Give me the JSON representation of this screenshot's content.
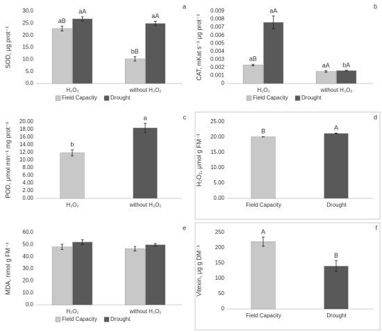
{
  "chart_data": [
    {
      "type": "bar",
      "panel": "a",
      "ylabel": "SOD, μg prot⁻¹",
      "categories": [
        "H₂O₂",
        "without H₂O₂"
      ],
      "series": [
        {
          "name": "Field Capacity",
          "color": "#c8c8c8",
          "values": [
            22.8,
            10.2
          ],
          "errors": [
            1.0,
            0.9
          ],
          "annotations": [
            "aB",
            "bB"
          ]
        },
        {
          "name": "Drought",
          "color": "#595959",
          "values": [
            26.8,
            24.9
          ],
          "errors": [
            0.9,
            0.9
          ],
          "annotations": [
            "aA",
            "aA"
          ]
        }
      ],
      "ylim": [
        0,
        30
      ],
      "yticks": [
        {
          "value": 0,
          "label": "0.0"
        },
        {
          "value": 5,
          "label": "5.0"
        },
        {
          "value": 10,
          "label": "10.0"
        },
        {
          "value": 15,
          "label": "15.0"
        },
        {
          "value": 20,
          "label": "20.0"
        },
        {
          "value": 25,
          "label": "25.0"
        },
        {
          "value": 30,
          "label": "30.0"
        }
      ],
      "legend": "bottom",
      "frame": false
    },
    {
      "type": "bar",
      "panel": "b",
      "ylabel": "CAT, mKat s⁻¹ μg prot⁻¹",
      "categories": [
        "H₂O₂",
        "without H₂O₂"
      ],
      "series": [
        {
          "name": "Field Capacity",
          "color": "#c8c8c8",
          "values": [
            0.0023,
            0.0015
          ],
          "errors": [
            0.0001,
            0.0001
          ],
          "annotations": [
            "aB",
            "aA"
          ]
        },
        {
          "name": "Drought",
          "color": "#595959",
          "values": [
            0.0076,
            0.0016
          ],
          "errors": [
            0.0008,
            5e-05
          ],
          "annotations": [
            "aA",
            "bA"
          ]
        }
      ],
      "ylim": [
        0,
        0.009
      ],
      "yticks": [
        0,
        0.001,
        0.002,
        0.003,
        0.004,
        0.005,
        0.006,
        0.007,
        0.008,
        0.009
      ],
      "legend": "bottom",
      "frame": false
    },
    {
      "type": "bar",
      "panel": "c",
      "ylabel": "POD, μmol min⁻¹ mg prot⁻¹",
      "categories": [
        "H₂O₂",
        "without H₂O₂"
      ],
      "values": [
        11.9,
        18.4
      ],
      "errors": [
        0.8,
        1.2
      ],
      "annotations": [
        "b",
        "a"
      ],
      "colors": [
        "#c8c8c8",
        "#595959"
      ],
      "ylim": [
        0,
        20
      ],
      "yticks": [
        {
          "value": 0,
          "label": "0.00"
        },
        {
          "value": 2,
          "label": "2.00"
        },
        {
          "value": 4,
          "label": "4.00"
        },
        {
          "value": 6,
          "label": "6.00"
        },
        {
          "value": 8,
          "label": "8.00"
        },
        {
          "value": 10,
          "label": "10.00"
        },
        {
          "value": 12,
          "label": "12.00"
        },
        {
          "value": 14,
          "label": "14.00"
        },
        {
          "value": 16,
          "label": "16.00"
        },
        {
          "value": 18,
          "label": "18.00"
        },
        {
          "value": 20,
          "label": "20.00"
        }
      ],
      "frame": false
    },
    {
      "type": "bar",
      "panel": "d",
      "ylabel": "H₂O₂, μmol g FM⁻¹",
      "categories": [
        "Field Capacity",
        "Drought"
      ],
      "values": [
        20.1,
        21.2
      ],
      "errors": [
        0.05,
        0.1
      ],
      "annotations": [
        "B",
        "A"
      ],
      "colors": [
        "#c8c8c8",
        "#595959"
      ],
      "ylim": [
        0,
        25
      ],
      "yticks": [
        {
          "value": 0,
          "label": "0.00"
        },
        {
          "value": 5,
          "label": "5.00"
        },
        {
          "value": 10,
          "label": "10.00"
        },
        {
          "value": 15,
          "label": "15.00"
        },
        {
          "value": 20,
          "label": "20.00"
        },
        {
          "value": 25,
          "label": "25.00"
        }
      ],
      "frame": true
    },
    {
      "type": "bar",
      "panel": "e",
      "ylabel": "MDA, nmol g FM⁻¹",
      "categories": [
        "H₂O₂",
        "without H₂O₂"
      ],
      "series": [
        {
          "name": "Field Capacity",
          "color": "#c8c8c8",
          "values": [
            48,
            46.5
          ],
          "errors": [
            2.2,
            1.9
          ]
        },
        {
          "name": "Drought",
          "color": "#595959",
          "values": [
            52,
            49.8
          ],
          "errors": [
            2,
            1
          ]
        }
      ],
      "ylim": [
        0,
        60
      ],
      "yticks": [
        {
          "value": 0,
          "label": "0.0"
        },
        {
          "value": 10,
          "label": "10.0"
        },
        {
          "value": 20,
          "label": "20.0"
        },
        {
          "value": 30,
          "label": "30.0"
        },
        {
          "value": 40,
          "label": "40.0"
        },
        {
          "value": 50,
          "label": "50.0"
        },
        {
          "value": 60,
          "label": "60.0"
        }
      ],
      "legend": "bottom",
      "frame": false
    },
    {
      "type": "bar",
      "panel": "f",
      "ylabel": "Vitexin, μg g DM⁻¹",
      "categories": [
        "Field Capacity",
        "Drought"
      ],
      "values": [
        220,
        140
      ],
      "errors": [
        15,
        18
      ],
      "annotations": [
        "A",
        "B"
      ],
      "colors": [
        "#c8c8c8",
        "#595959"
      ],
      "ylim": [
        0,
        250
      ],
      "yticks": [
        0,
        50,
        100,
        150,
        200,
        250
      ],
      "frame": true
    }
  ]
}
